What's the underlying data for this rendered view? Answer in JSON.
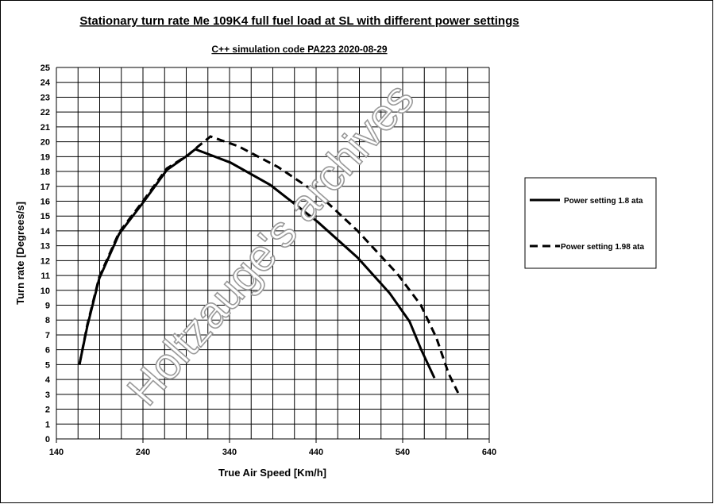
{
  "chart_data": {
    "type": "line",
    "title": "Stationary turn rate Me 109K4 full fuel load at SL with different power settings",
    "subtitle": "C++ simulation code PA223  2020-08-29",
    "x_label": "True Air Speed [Km/h]",
    "y_label": "Turn rate [Degrees/s]",
    "watermark": "Holtzauge's archives",
    "xlim": [
      140,
      640
    ],
    "ylim": [
      0,
      25
    ],
    "xticks": [
      140,
      240,
      340,
      440,
      540,
      640
    ],
    "x_minor_ticks": [
      165,
      190,
      215,
      265,
      290,
      315,
      365,
      390,
      415,
      465,
      490,
      515,
      565,
      590,
      615
    ],
    "yticks": [
      0,
      1,
      2,
      3,
      4,
      5,
      6,
      7,
      8,
      9,
      10,
      11,
      12,
      13,
      14,
      15,
      16,
      17,
      18,
      19,
      20,
      21,
      22,
      23,
      24,
      25
    ],
    "grid": true,
    "legend": "right",
    "series": [
      {
        "name": "Power setting 1.8 ata",
        "color": "#000000",
        "dash": "solid",
        "x": [
          166.6,
          175.8,
          189.5,
          212.5,
          240,
          267.5,
          292,
          300.5,
          341,
          387,
          442,
          488,
          525,
          548,
          561.5,
          576.7
        ],
        "values": [
          5.0,
          7.6,
          10.8,
          13.8,
          15.9,
          18.1,
          19.1,
          19.5,
          18.6,
          17.1,
          14.6,
          12.2,
          9.8,
          7.9,
          6.0,
          4.1
        ]
      },
      {
        "name": "Power setting 1.98 ata",
        "color": "#000000",
        "dash": "dashed",
        "x": [
          166.6,
          175.8,
          189.5,
          212.5,
          240,
          267.5,
          292,
          304,
          318,
          350,
          396,
          442,
          488,
          534,
          561,
          579,
          593,
          604
        ],
        "values": [
          5.0,
          7.7,
          10.9,
          13.9,
          16.0,
          18.2,
          19.1,
          19.7,
          20.35,
          19.7,
          18.3,
          16.5,
          14.0,
          11.1,
          9.0,
          6.8,
          4.4,
          3.1
        ]
      }
    ]
  }
}
